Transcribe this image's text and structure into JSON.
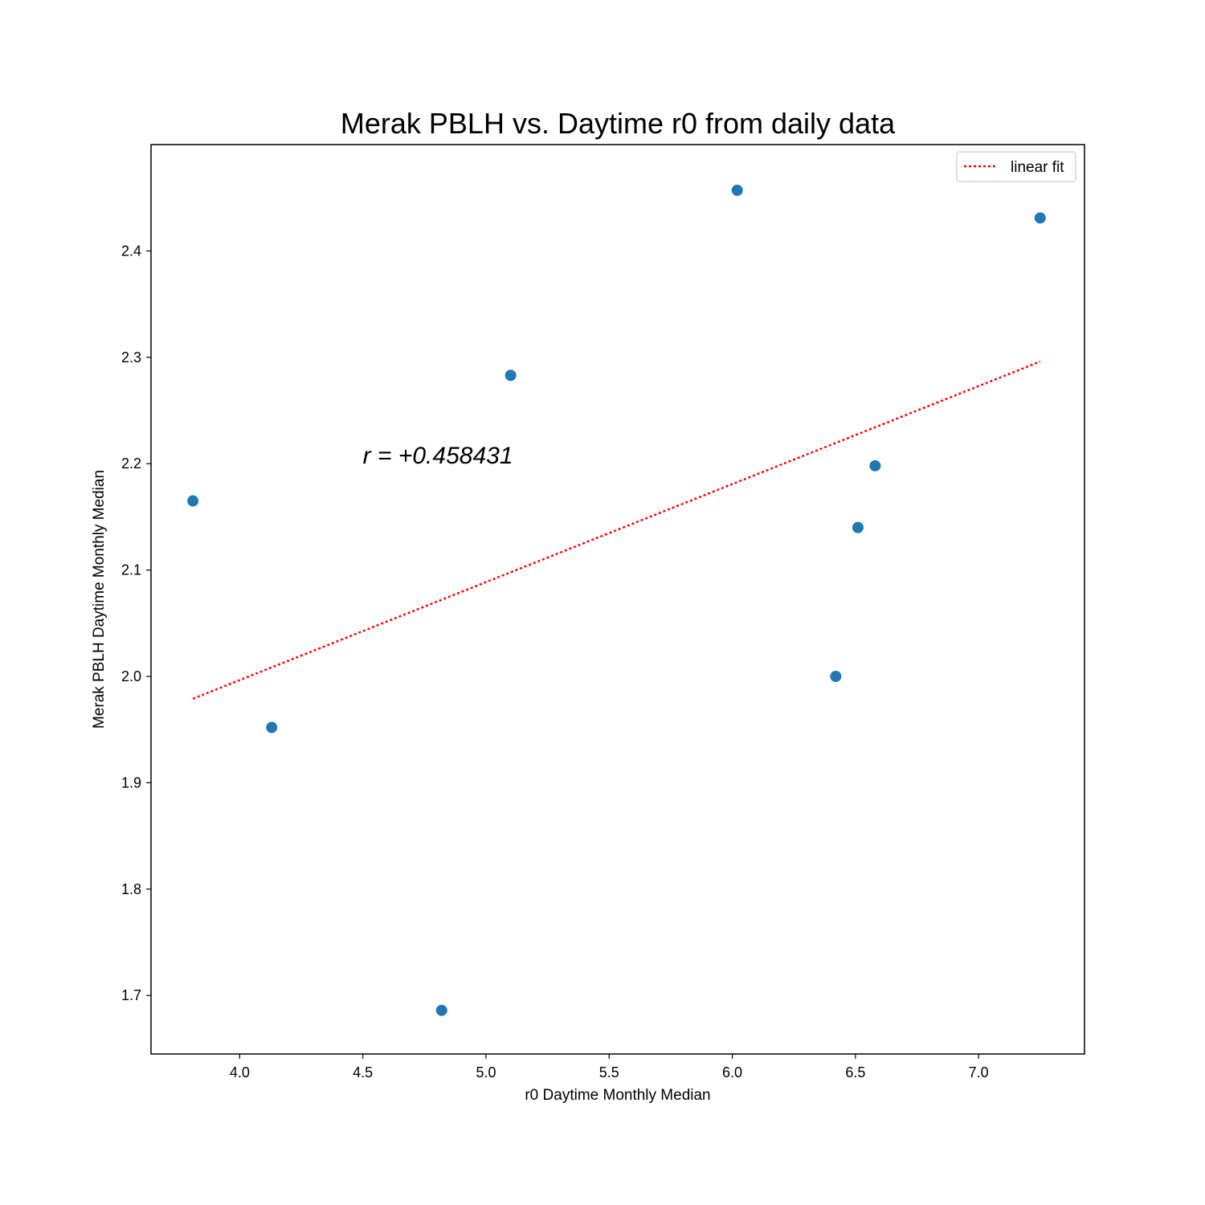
{
  "chart_data": {
    "type": "scatter",
    "title": "Merak PBLH vs. Daytime r0 from daily data",
    "xlabel": "r0 Daytime Monthly Median",
    "ylabel": "Merak PBLH Daytime Monthly Median",
    "xlim": [
      3.64,
      7.43
    ],
    "ylim": [
      1.645,
      2.5
    ],
    "xticks": [
      4.0,
      4.5,
      5.0,
      5.5,
      6.0,
      6.5,
      7.0
    ],
    "yticks": [
      1.7,
      1.8,
      1.9,
      2.0,
      2.1,
      2.2,
      2.3,
      2.4
    ],
    "xtick_labels": [
      "4.0",
      "4.5",
      "5.0",
      "5.5",
      "6.0",
      "6.5",
      "7.0"
    ],
    "ytick_labels": [
      "1.7",
      "1.8",
      "1.9",
      "2.0",
      "2.1",
      "2.2",
      "2.3",
      "2.4"
    ],
    "grid": false,
    "legend_position": "top-right",
    "points": {
      "x": [
        3.81,
        4.13,
        4.82,
        5.1,
        6.02,
        6.42,
        6.51,
        6.58,
        7.25
      ],
      "y": [
        2.165,
        1.952,
        1.686,
        2.283,
        2.457,
        2.0,
        2.14,
        2.198,
        2.431
      ],
      "color": "#1f77b4"
    },
    "fit": {
      "name": "linear fit",
      "x": [
        3.81,
        7.25
      ],
      "y": [
        1.979,
        2.296
      ],
      "color": "#ff0000",
      "style": "dotted"
    },
    "annotation": {
      "text": "r = +0.458431",
      "x": 4.5,
      "y": 2.2
    }
  }
}
